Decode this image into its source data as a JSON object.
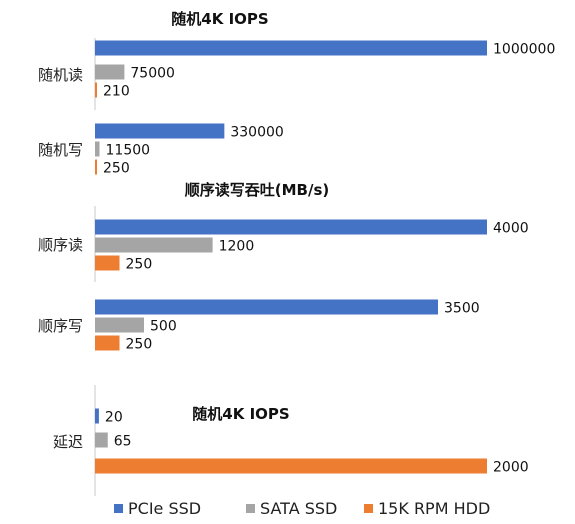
{
  "chart_data": [
    {
      "type": "bar",
      "orientation": "horizontal",
      "title": "随机4K IOPS",
      "categories": [
        "随机读",
        "随机写"
      ],
      "series": [
        {
          "name": "PCIe SSD",
          "values": [
            1000000,
            330000
          ]
        },
        {
          "name": "SATA SSD",
          "values": [
            75000,
            11500
          ]
        },
        {
          "name": "15K RPM HDD",
          "values": [
            210,
            250
          ]
        }
      ],
      "xlim": [
        0,
        1000000
      ],
      "grid": false
    },
    {
      "type": "bar",
      "orientation": "horizontal",
      "title": "顺序读写吞吐(MB/s)",
      "categories": [
        "顺序读",
        "顺序写"
      ],
      "series": [
        {
          "name": "PCIe SSD",
          "values": [
            4000,
            3500
          ]
        },
        {
          "name": "SATA SSD",
          "values": [
            1200,
            500
          ]
        },
        {
          "name": "15K RPM HDD",
          "values": [
            250,
            250
          ]
        }
      ],
      "xlim": [
        0,
        4000
      ],
      "grid": false
    },
    {
      "type": "bar",
      "orientation": "horizontal",
      "title": "随机4K IOPS",
      "categories": [
        "延迟"
      ],
      "series": [
        {
          "name": "PCIe SSD",
          "values": [
            20
          ]
        },
        {
          "name": "SATA SSD",
          "values": [
            65
          ]
        },
        {
          "name": "15K RPM HDD",
          "values": [
            2000
          ]
        }
      ],
      "xlim": [
        0,
        2000
      ],
      "grid": false
    }
  ],
  "legend": {
    "placement": "bottom",
    "items": [
      {
        "name": "PCIe SSD",
        "color": "#4472C4"
      },
      {
        "name": "SATA SSD",
        "color": "#A5A5A5"
      },
      {
        "name": "15K RPM HDD",
        "color": "#ED7D31"
      }
    ]
  },
  "colors": [
    "#4472C4",
    "#A5A5A5",
    "#ED7D31"
  ]
}
